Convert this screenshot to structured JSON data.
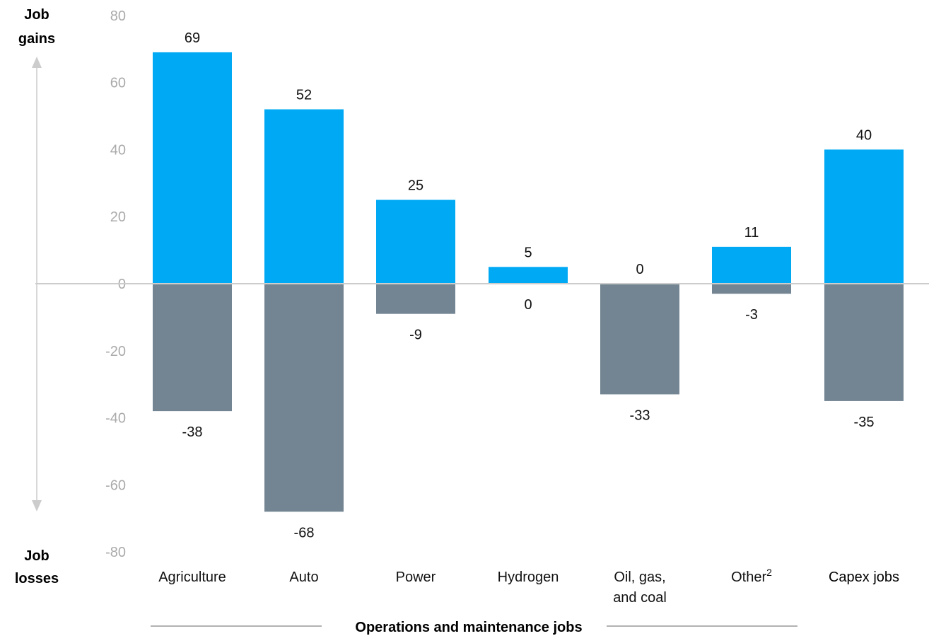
{
  "chart_data": {
    "type": "bar",
    "categories": [
      "Agriculture",
      "Auto",
      "Power",
      "Hydrogen",
      "Oil, gas, and coal",
      "Other²",
      "Capex jobs"
    ],
    "category_lines": [
      [
        "Agriculture"
      ],
      [
        "Auto"
      ],
      [
        "Power"
      ],
      [
        "Hydrogen"
      ],
      [
        "Oil, gas,",
        "and coal"
      ],
      [
        "Other",
        "2"
      ],
      [
        "Capex jobs"
      ]
    ],
    "series": [
      {
        "values": [
          69,
          52,
          25,
          5,
          0,
          11,
          40
        ],
        "color": "#00a9f4"
      },
      {
        "values": [
          -38,
          -68,
          -9,
          0,
          -33,
          -3,
          -35
        ],
        "color": "#738592"
      }
    ],
    "ylim": [
      -80,
      80
    ],
    "yticks": [
      80,
      60,
      40,
      20,
      0,
      -20,
      -40,
      -60,
      -80
    ],
    "grid": false,
    "top_axis_label": [
      "Job",
      "gains"
    ],
    "bottom_axis_label": [
      "Job",
      "losses"
    ],
    "group_label": "Operations and maintenance jobs",
    "group_covers": [
      "Agriculture",
      "Auto",
      "Power",
      "Hydrogen",
      "Oil, gas, and coal",
      "Other²"
    ],
    "emphasized_category": "Capex jobs",
    "colors": {
      "baseline": "#cccccc",
      "arrow": "#cccccc",
      "tick_text": "#aaaaaa",
      "group_rule": "#999999"
    }
  }
}
